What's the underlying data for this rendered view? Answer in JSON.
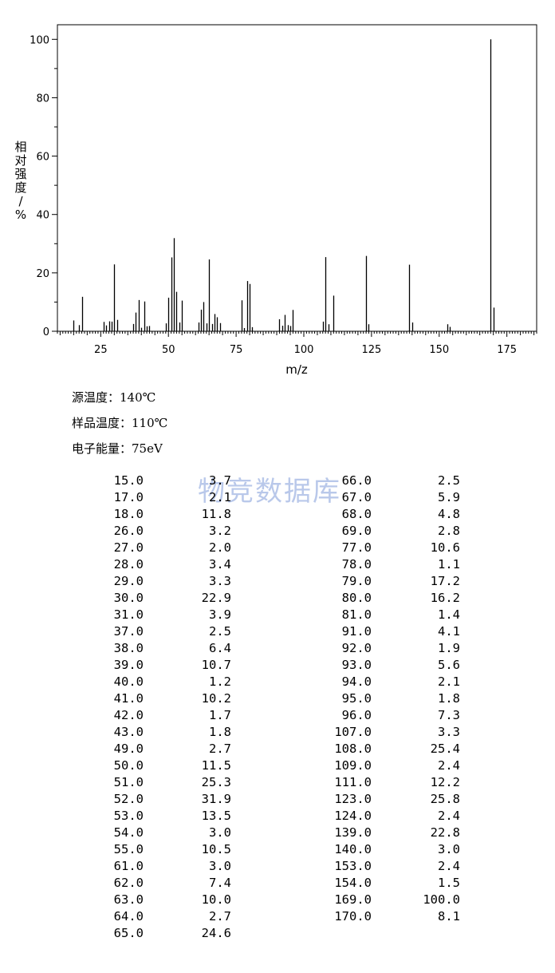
{
  "chart_data": {
    "type": "bar",
    "ylabel": "相对强度/%",
    "xlabel": "m/z",
    "xlim": [
      9,
      186
    ],
    "ylim": [
      0,
      105
    ],
    "xticks": [
      25,
      50,
      75,
      100,
      125,
      150,
      175
    ],
    "yticks": [
      0,
      20,
      40,
      60,
      80,
      100
    ],
    "grid": false,
    "peaks": [
      {
        "mz": 15.0,
        "intensity": 3.7
      },
      {
        "mz": 17.0,
        "intensity": 2.1
      },
      {
        "mz": 18.0,
        "intensity": 11.8
      },
      {
        "mz": 26.0,
        "intensity": 3.2
      },
      {
        "mz": 27.0,
        "intensity": 2.0
      },
      {
        "mz": 28.0,
        "intensity": 3.4
      },
      {
        "mz": 29.0,
        "intensity": 3.3
      },
      {
        "mz": 30.0,
        "intensity": 22.9
      },
      {
        "mz": 31.0,
        "intensity": 3.9
      },
      {
        "mz": 37.0,
        "intensity": 2.5
      },
      {
        "mz": 38.0,
        "intensity": 6.4
      },
      {
        "mz": 39.0,
        "intensity": 10.7
      },
      {
        "mz": 40.0,
        "intensity": 1.2
      },
      {
        "mz": 41.0,
        "intensity": 10.2
      },
      {
        "mz": 42.0,
        "intensity": 1.7
      },
      {
        "mz": 43.0,
        "intensity": 1.8
      },
      {
        "mz": 49.0,
        "intensity": 2.7
      },
      {
        "mz": 50.0,
        "intensity": 11.5
      },
      {
        "mz": 51.0,
        "intensity": 25.3
      },
      {
        "mz": 52.0,
        "intensity": 31.9
      },
      {
        "mz": 53.0,
        "intensity": 13.5
      },
      {
        "mz": 54.0,
        "intensity": 3.0
      },
      {
        "mz": 55.0,
        "intensity": 10.5
      },
      {
        "mz": 61.0,
        "intensity": 3.0
      },
      {
        "mz": 62.0,
        "intensity": 7.4
      },
      {
        "mz": 63.0,
        "intensity": 10.0
      },
      {
        "mz": 64.0,
        "intensity": 2.7
      },
      {
        "mz": 65.0,
        "intensity": 24.6
      },
      {
        "mz": 66.0,
        "intensity": 2.5
      },
      {
        "mz": 67.0,
        "intensity": 5.9
      },
      {
        "mz": 68.0,
        "intensity": 4.8
      },
      {
        "mz": 69.0,
        "intensity": 2.8
      },
      {
        "mz": 77.0,
        "intensity": 10.6
      },
      {
        "mz": 78.0,
        "intensity": 1.1
      },
      {
        "mz": 79.0,
        "intensity": 17.2
      },
      {
        "mz": 80.0,
        "intensity": 16.2
      },
      {
        "mz": 81.0,
        "intensity": 1.4
      },
      {
        "mz": 91.0,
        "intensity": 4.1
      },
      {
        "mz": 92.0,
        "intensity": 1.9
      },
      {
        "mz": 93.0,
        "intensity": 5.6
      },
      {
        "mz": 94.0,
        "intensity": 2.1
      },
      {
        "mz": 95.0,
        "intensity": 1.8
      },
      {
        "mz": 96.0,
        "intensity": 7.3
      },
      {
        "mz": 107.0,
        "intensity": 3.3
      },
      {
        "mz": 108.0,
        "intensity": 25.4
      },
      {
        "mz": 109.0,
        "intensity": 2.4
      },
      {
        "mz": 111.0,
        "intensity": 12.2
      },
      {
        "mz": 123.0,
        "intensity": 25.8
      },
      {
        "mz": 124.0,
        "intensity": 2.4
      },
      {
        "mz": 139.0,
        "intensity": 22.8
      },
      {
        "mz": 140.0,
        "intensity": 3.0
      },
      {
        "mz": 153.0,
        "intensity": 2.4
      },
      {
        "mz": 154.0,
        "intensity": 1.5
      },
      {
        "mz": 169.0,
        "intensity": 100.0
      },
      {
        "mz": 170.0,
        "intensity": 8.1
      }
    ]
  },
  "info": {
    "source_temp": "源温度：140℃",
    "sample_temp": "样品温度：110℃",
    "electron_energy": "电子能量：75eV"
  },
  "watermark": "物竞数据库",
  "peak_table": {
    "left": [
      [
        "15.0",
        "3.7"
      ],
      [
        "17.0",
        "2.1"
      ],
      [
        "18.0",
        "11.8"
      ],
      [
        "26.0",
        "3.2"
      ],
      [
        "27.0",
        "2.0"
      ],
      [
        "28.0",
        "3.4"
      ],
      [
        "29.0",
        "3.3"
      ],
      [
        "30.0",
        "22.9"
      ],
      [
        "31.0",
        "3.9"
      ],
      [
        "37.0",
        "2.5"
      ],
      [
        "38.0",
        "6.4"
      ],
      [
        "39.0",
        "10.7"
      ],
      [
        "40.0",
        "1.2"
      ],
      [
        "41.0",
        "10.2"
      ],
      [
        "42.0",
        "1.7"
      ],
      [
        "43.0",
        "1.8"
      ],
      [
        "49.0",
        "2.7"
      ],
      [
        "50.0",
        "11.5"
      ],
      [
        "51.0",
        "25.3"
      ],
      [
        "52.0",
        "31.9"
      ],
      [
        "53.0",
        "13.5"
      ],
      [
        "54.0",
        "3.0"
      ],
      [
        "55.0",
        "10.5"
      ],
      [
        "61.0",
        "3.0"
      ],
      [
        "62.0",
        "7.4"
      ],
      [
        "63.0",
        "10.0"
      ],
      [
        "64.0",
        "2.7"
      ],
      [
        "65.0",
        "24.6"
      ]
    ],
    "right": [
      [
        "66.0",
        "2.5"
      ],
      [
        "67.0",
        "5.9"
      ],
      [
        "68.0",
        "4.8"
      ],
      [
        "69.0",
        "2.8"
      ],
      [
        "77.0",
        "10.6"
      ],
      [
        "78.0",
        "1.1"
      ],
      [
        "79.0",
        "17.2"
      ],
      [
        "80.0",
        "16.2"
      ],
      [
        "81.0",
        "1.4"
      ],
      [
        "91.0",
        "4.1"
      ],
      [
        "92.0",
        "1.9"
      ],
      [
        "93.0",
        "5.6"
      ],
      [
        "94.0",
        "2.1"
      ],
      [
        "95.0",
        "1.8"
      ],
      [
        "96.0",
        "7.3"
      ],
      [
        "107.0",
        "3.3"
      ],
      [
        "108.0",
        "25.4"
      ],
      [
        "109.0",
        "2.4"
      ],
      [
        "111.0",
        "12.2"
      ],
      [
        "123.0",
        "25.8"
      ],
      [
        "124.0",
        "2.4"
      ],
      [
        "139.0",
        "22.8"
      ],
      [
        "140.0",
        "3.0"
      ],
      [
        "153.0",
        "2.4"
      ],
      [
        "154.0",
        "1.5"
      ],
      [
        "169.0",
        "100.0"
      ],
      [
        "170.0",
        "8.1"
      ]
    ]
  }
}
